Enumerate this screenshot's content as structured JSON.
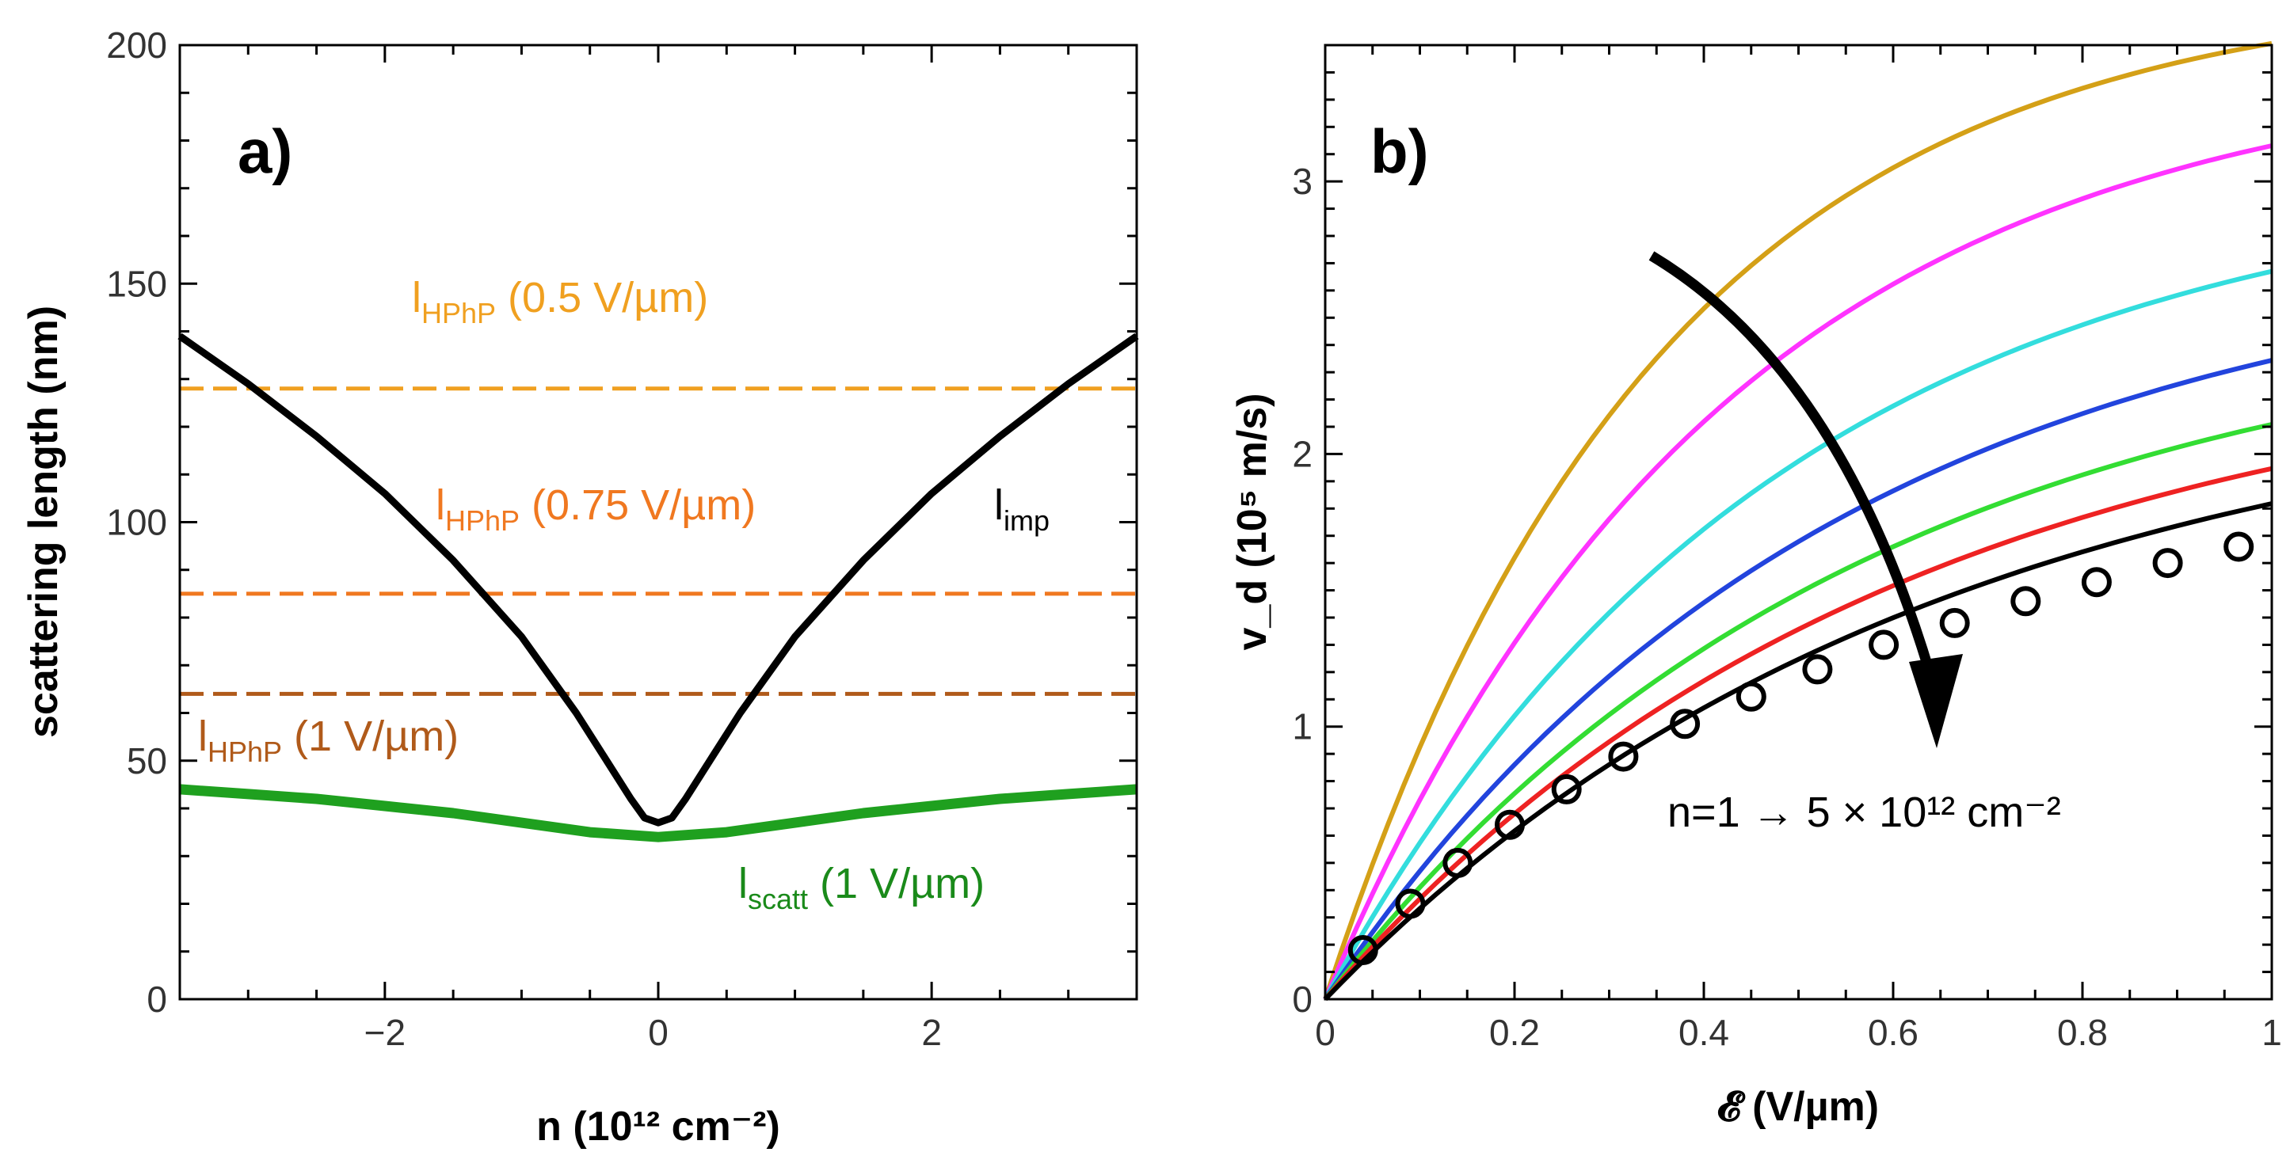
{
  "chart_data": [
    {
      "panel": "a)",
      "type": "line",
      "xlabel": "n (10¹² cm⁻²)",
      "ylabel": "scattering length (nm)",
      "xlim": [
        -3.5,
        3.5
      ],
      "ylim": [
        0,
        200
      ],
      "xticks": [
        -2,
        0,
        2
      ],
      "xtick_labels": [
        "−2",
        "0",
        "2"
      ],
      "yticks": [
        0,
        50,
        100,
        150,
        200
      ],
      "ytick_labels": [
        "0",
        "50",
        "100",
        "150",
        "200"
      ],
      "series": [
        {
          "name": "l_imp",
          "label": {
            "main": "l",
            "sub": "imp"
          },
          "color": "#000000",
          "x": [
            -3.5,
            -3.0,
            -2.5,
            -2.0,
            -1.5,
            -1.0,
            -0.6,
            -0.4,
            -0.2,
            -0.1,
            0.0,
            0.1,
            0.2,
            0.4,
            0.6,
            1.0,
            1.5,
            2.0,
            2.5,
            3.0,
            3.5
          ],
          "y": [
            139,
            129,
            118,
            106,
            92,
            76,
            60,
            51,
            42,
            38,
            37,
            38,
            42,
            51,
            60,
            76,
            92,
            106,
            118,
            129,
            139
          ]
        },
        {
          "name": "l_scatt (1 V/µm)",
          "label": {
            "main": "l",
            "sub": "scatt",
            "suffix": " (1 V/µm)"
          },
          "color": "#1fa01f",
          "x": [
            -3.5,
            -3.0,
            -2.5,
            -2.0,
            -1.5,
            -1.0,
            -0.5,
            0.0,
            0.5,
            1.0,
            1.5,
            2.0,
            2.5,
            3.0,
            3.5
          ],
          "y": [
            44,
            43,
            42,
            40.5,
            39,
            37,
            35,
            34,
            35,
            37,
            39,
            40.5,
            42,
            43,
            44
          ]
        },
        {
          "name": "l_HPhP (0.5 V/µm)",
          "label": {
            "main": "l",
            "sub": "HPhP",
            "suffix": " (0.5 V/µm)"
          },
          "color": "#f0a020",
          "style": "dashed",
          "x": [
            -3.5,
            3.5
          ],
          "y": [
            128,
            128
          ]
        },
        {
          "name": "l_HPhP (0.75 V/µm)",
          "label": {
            "main": "l",
            "sub": "HPhP",
            "suffix": " (0.75 V/µm)"
          },
          "color": "#f07820",
          "style": "dashed",
          "x": [
            -3.5,
            3.5
          ],
          "y": [
            85,
            85
          ]
        },
        {
          "name": "l_HPhP (1 V/µm)",
          "label": {
            "main": "l",
            "sub": "HPhP",
            "suffix": " (1 V/µm)"
          },
          "color": "#b05a1a",
          "style": "dashed",
          "x": [
            -3.5,
            3.5
          ],
          "y": [
            64,
            64
          ]
        }
      ]
    },
    {
      "panel": "b)",
      "type": "line",
      "xlabel": "𝓔 (V/µm)",
      "ylabel": "v_d (10⁵ m/s)",
      "xlim": [
        0,
        1
      ],
      "ylim": [
        0,
        3.5
      ],
      "xticks": [
        0,
        0.2,
        0.4,
        0.6,
        0.8,
        1
      ],
      "xtick_labels": [
        "0",
        "0.2",
        "0.4",
        "0.6",
        "0.8",
        "1"
      ],
      "yticks": [
        0,
        1,
        2,
        3
      ],
      "ytick_labels": [
        "0",
        "1",
        "2",
        "3"
      ],
      "annotation": "n=1 → 5 × 10¹² cm⁻²",
      "series": [
        {
          "name": "curve-gold",
          "color": "#d4a017",
          "vsat": 3.72,
          "ec": 0.35
        },
        {
          "name": "curve-magenta",
          "color": "#ff33ff",
          "vsat": 3.45,
          "ec": 0.42
        },
        {
          "name": "curve-cyan",
          "color": "#33dddd",
          "vsat": 3.05,
          "ec": 0.48
        },
        {
          "name": "curve-blue",
          "color": "#2244dd",
          "vsat": 2.78,
          "ec": 0.54
        },
        {
          "name": "curve-green",
          "color": "#33dd33",
          "vsat": 2.55,
          "ec": 0.57
        },
        {
          "name": "curve-red",
          "color": "#ee2222",
          "vsat": 2.4,
          "ec": 0.6
        },
        {
          "name": "curve-black",
          "color": "#000000",
          "vsat": 2.3,
          "ec": 0.64
        }
      ],
      "markers": {
        "name": "open-circles",
        "x": [
          0.04,
          0.09,
          0.14,
          0.195,
          0.255,
          0.315,
          0.38,
          0.45,
          0.52,
          0.59,
          0.665,
          0.74,
          0.815,
          0.89,
          0.965
        ],
        "y": [
          0.18,
          0.35,
          0.5,
          0.64,
          0.77,
          0.89,
          1.01,
          1.11,
          1.21,
          1.3,
          1.38,
          1.46,
          1.53,
          1.6,
          1.66
        ]
      }
    }
  ]
}
